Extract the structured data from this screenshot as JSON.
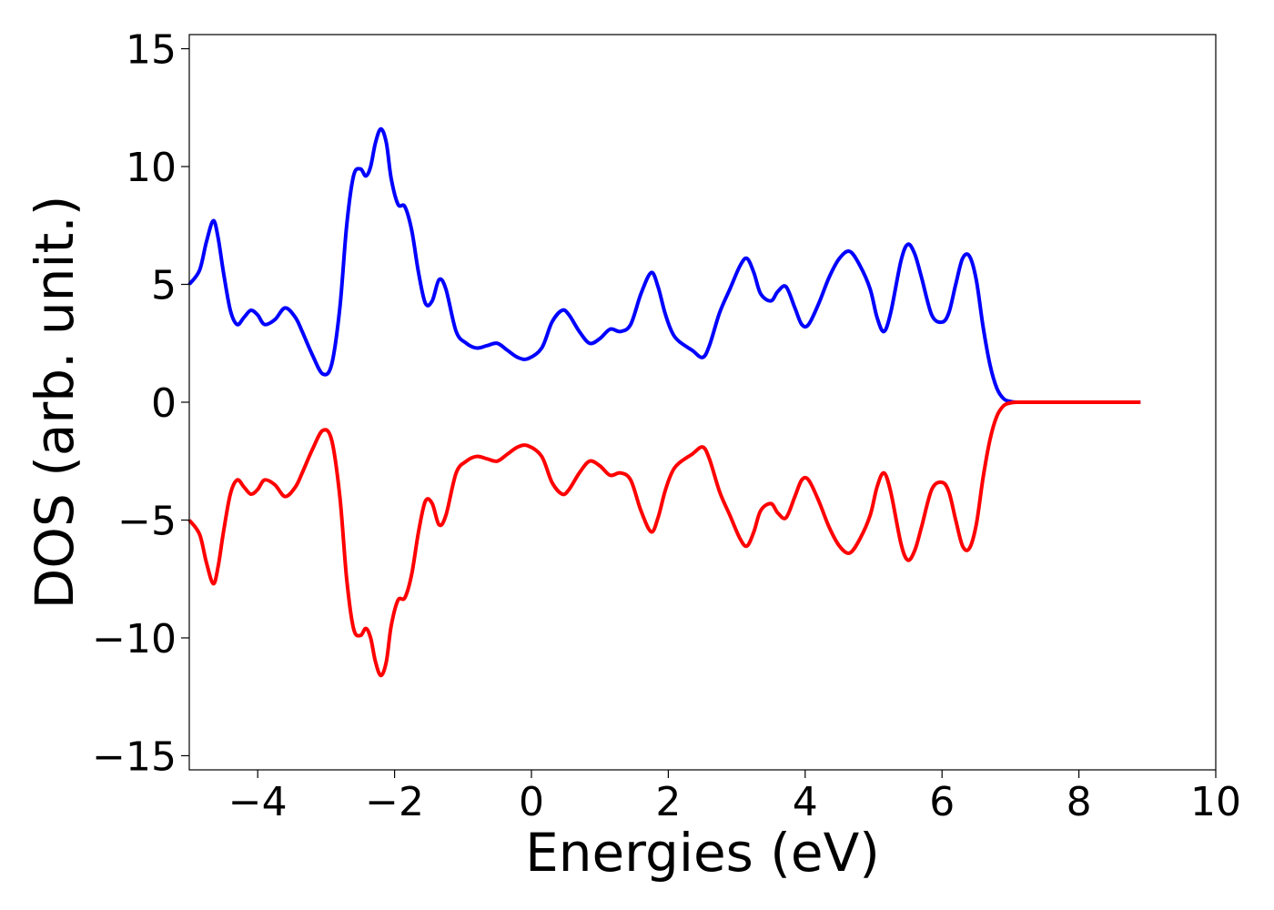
{
  "chart_data": {
    "type": "line",
    "title": "",
    "xlabel": "Energies (eV)",
    "ylabel": "DOS (arb. unit.)",
    "xlim": [
      -5,
      10
    ],
    "ylim": [
      -15.6,
      15.6
    ],
    "xticks": [
      -4,
      -2,
      0,
      2,
      4,
      6,
      8,
      10
    ],
    "xtick_labels": [
      "−4",
      "−2",
      "0",
      "2",
      "4",
      "6",
      "8",
      "10"
    ],
    "yticks": [
      -15,
      -10,
      -5,
      0,
      5,
      10,
      15
    ],
    "ytick_labels": [
      "−15",
      "−10",
      "−5",
      "0",
      "5",
      "10",
      "15"
    ],
    "grid": false,
    "legend": "none",
    "series": [
      {
        "color": "#0000ff",
        "x": [
          -5.0,
          -4.85,
          -4.75,
          -4.65,
          -4.58,
          -4.5,
          -4.4,
          -4.3,
          -4.2,
          -4.1,
          -4.0,
          -3.9,
          -3.75,
          -3.6,
          -3.45,
          -3.35,
          -3.2,
          -3.05,
          -2.92,
          -2.8,
          -2.7,
          -2.6,
          -2.5,
          -2.42,
          -2.35,
          -2.28,
          -2.2,
          -2.12,
          -2.05,
          -1.95,
          -1.85,
          -1.75,
          -1.65,
          -1.55,
          -1.45,
          -1.35,
          -1.25,
          -1.1,
          -0.95,
          -0.8,
          -0.65,
          -0.5,
          -0.35,
          -0.2,
          -0.05,
          0.15,
          0.3,
          0.45,
          0.55,
          0.7,
          0.85,
          1.0,
          1.15,
          1.3,
          1.45,
          1.6,
          1.75,
          1.85,
          1.95,
          2.05,
          2.15,
          2.35,
          2.5,
          2.6,
          2.75,
          2.9,
          3.05,
          3.15,
          3.25,
          3.35,
          3.5,
          3.6,
          3.72,
          3.85,
          3.95,
          4.05,
          4.2,
          4.35,
          4.5,
          4.65,
          4.8,
          4.95,
          5.05,
          5.15,
          5.25,
          5.4,
          5.5,
          5.6,
          5.7,
          5.85,
          6.0,
          6.1,
          6.2,
          6.3,
          6.4,
          6.5,
          6.6,
          6.7,
          6.8,
          6.9,
          7.0,
          7.1,
          7.3,
          7.6,
          8.0,
          8.5,
          8.9
        ],
        "y": [
          5.0,
          5.6,
          6.8,
          7.7,
          7.0,
          5.5,
          3.9,
          3.3,
          3.6,
          3.9,
          3.7,
          3.3,
          3.5,
          4.0,
          3.6,
          3.0,
          2.0,
          1.2,
          1.6,
          4.0,
          7.5,
          9.6,
          9.9,
          9.6,
          10.0,
          11.0,
          11.6,
          11.0,
          9.5,
          8.4,
          8.3,
          7.3,
          5.5,
          4.2,
          4.3,
          5.2,
          4.8,
          3.0,
          2.5,
          2.3,
          2.4,
          2.5,
          2.2,
          1.9,
          1.85,
          2.3,
          3.4,
          3.9,
          3.7,
          3.0,
          2.5,
          2.7,
          3.1,
          3.0,
          3.3,
          4.6,
          5.5,
          4.9,
          3.8,
          3.0,
          2.6,
          2.2,
          1.9,
          2.4,
          3.8,
          4.8,
          5.8,
          6.1,
          5.5,
          4.6,
          4.3,
          4.7,
          4.9,
          4.0,
          3.3,
          3.3,
          4.2,
          5.3,
          6.1,
          6.4,
          5.8,
          4.8,
          3.6,
          3.0,
          3.8,
          6.0,
          6.7,
          6.3,
          5.3,
          3.7,
          3.4,
          3.8,
          5.0,
          6.1,
          6.2,
          5.2,
          3.2,
          1.6,
          0.6,
          0.15,
          0.03,
          0.0,
          0.0,
          0.0,
          0.0,
          0.0,
          0.0
        ]
      },
      {
        "color": "#ff0000",
        "x": [
          -5.0,
          -4.85,
          -4.75,
          -4.65,
          -4.58,
          -4.5,
          -4.4,
          -4.3,
          -4.2,
          -4.1,
          -4.0,
          -3.9,
          -3.75,
          -3.6,
          -3.45,
          -3.35,
          -3.2,
          -3.05,
          -2.92,
          -2.8,
          -2.7,
          -2.6,
          -2.5,
          -2.42,
          -2.35,
          -2.28,
          -2.2,
          -2.12,
          -2.05,
          -1.95,
          -1.85,
          -1.75,
          -1.65,
          -1.55,
          -1.45,
          -1.35,
          -1.25,
          -1.1,
          -0.95,
          -0.8,
          -0.65,
          -0.5,
          -0.35,
          -0.2,
          -0.05,
          0.15,
          0.3,
          0.45,
          0.55,
          0.7,
          0.85,
          1.0,
          1.15,
          1.3,
          1.45,
          1.6,
          1.75,
          1.85,
          1.95,
          2.05,
          2.15,
          2.35,
          2.5,
          2.6,
          2.75,
          2.9,
          3.05,
          3.15,
          3.25,
          3.35,
          3.5,
          3.6,
          3.72,
          3.85,
          3.95,
          4.05,
          4.2,
          4.35,
          4.5,
          4.65,
          4.8,
          4.95,
          5.05,
          5.15,
          5.25,
          5.4,
          5.5,
          5.6,
          5.7,
          5.85,
          6.0,
          6.1,
          6.2,
          6.3,
          6.4,
          6.5,
          6.6,
          6.7,
          6.8,
          6.9,
          7.0,
          7.1,
          7.3,
          7.6,
          8.0,
          8.5,
          8.9
        ],
        "y": [
          -5.0,
          -5.6,
          -6.8,
          -7.7,
          -7.0,
          -5.5,
          -3.9,
          -3.3,
          -3.6,
          -3.9,
          -3.7,
          -3.3,
          -3.5,
          -4.0,
          -3.6,
          -3.0,
          -2.0,
          -1.2,
          -1.6,
          -4.0,
          -7.5,
          -9.6,
          -9.9,
          -9.6,
          -10.0,
          -11.0,
          -11.6,
          -11.0,
          -9.5,
          -8.4,
          -8.3,
          -7.3,
          -5.5,
          -4.2,
          -4.3,
          -5.2,
          -4.8,
          -3.0,
          -2.5,
          -2.3,
          -2.4,
          -2.5,
          -2.2,
          -1.9,
          -1.85,
          -2.3,
          -3.4,
          -3.9,
          -3.7,
          -3.0,
          -2.5,
          -2.7,
          -3.1,
          -3.0,
          -3.3,
          -4.6,
          -5.5,
          -4.9,
          -3.8,
          -3.0,
          -2.6,
          -2.2,
          -1.9,
          -2.4,
          -3.8,
          -4.8,
          -5.8,
          -6.1,
          -5.5,
          -4.6,
          -4.3,
          -4.7,
          -4.9,
          -4.0,
          -3.3,
          -3.3,
          -4.2,
          -5.3,
          -6.1,
          -6.4,
          -5.8,
          -4.8,
          -3.6,
          -3.0,
          -3.8,
          -6.0,
          -6.7,
          -6.3,
          -5.3,
          -3.7,
          -3.4,
          -3.8,
          -5.0,
          -6.1,
          -6.2,
          -5.2,
          -3.2,
          -1.6,
          -0.6,
          -0.15,
          -0.03,
          0.0,
          0.0,
          0.0,
          0.0,
          0.0,
          0.0
        ]
      }
    ]
  }
}
